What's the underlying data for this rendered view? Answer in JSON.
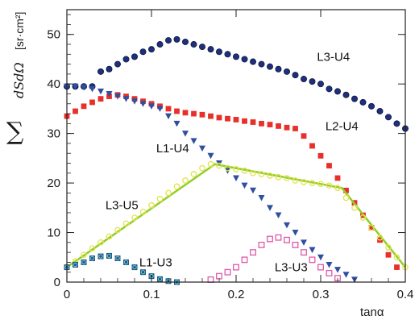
{
  "chart_data": {
    "type": "scatter",
    "xlabel": "tanα",
    "ylabel": {
      "sigma": "∑",
      "expr": "dSdΩ",
      "unit": "[sr·cm²]"
    },
    "xlim": [
      0,
      0.4
    ],
    "ylim": [
      0,
      55
    ],
    "xticks": [
      0,
      0.1,
      0.2,
      0.3,
      0.4
    ],
    "yticks": [
      0,
      10,
      20,
      30,
      40,
      50
    ],
    "xtick_labels": [
      "0",
      "0.1",
      "0.2",
      "0.3",
      "0.4"
    ],
    "ytick_labels": [
      "0",
      "10",
      "20",
      "30",
      "40",
      "50"
    ],
    "grid": false,
    "series": [
      {
        "name": "L3-U4",
        "marker": "circle-filled",
        "color": "#1f2f7a",
        "x": [
          0.0,
          0.01,
          0.02,
          0.03,
          0.04,
          0.05,
          0.06,
          0.07,
          0.08,
          0.09,
          0.1,
          0.11,
          0.12,
          0.13,
          0.14,
          0.15,
          0.16,
          0.17,
          0.18,
          0.19,
          0.2,
          0.21,
          0.22,
          0.23,
          0.24,
          0.25,
          0.26,
          0.27,
          0.28,
          0.29,
          0.3,
          0.31,
          0.32,
          0.33,
          0.34,
          0.35,
          0.36,
          0.37,
          0.38,
          0.39,
          0.4
        ],
        "y": [
          39.5,
          39.5,
          39.5,
          39.5,
          42.5,
          43.0,
          44.0,
          45.0,
          45.5,
          46.5,
          47.0,
          48.0,
          48.8,
          49.0,
          48.5,
          48.0,
          47.5,
          47.0,
          46.5,
          46.0,
          45.5,
          45.0,
          44.5,
          44.0,
          43.5,
          43.0,
          42.5,
          41.8,
          41.0,
          40.5,
          40.0,
          39.0,
          38.5,
          37.8,
          37.0,
          36.3,
          35.5,
          34.5,
          33.3,
          32.0,
          31.0
        ]
      },
      {
        "name": "L2-U4",
        "marker": "square-filled",
        "color": "#e8302a",
        "x": [
          0.0,
          0.01,
          0.02,
          0.03,
          0.04,
          0.05,
          0.06,
          0.07,
          0.08,
          0.09,
          0.1,
          0.11,
          0.12,
          0.13,
          0.14,
          0.15,
          0.16,
          0.17,
          0.18,
          0.19,
          0.2,
          0.21,
          0.22,
          0.23,
          0.24,
          0.25,
          0.26,
          0.27,
          0.28,
          0.29,
          0.3,
          0.31,
          0.32,
          0.33,
          0.34,
          0.35,
          0.36,
          0.37,
          0.38,
          0.39
        ],
        "y": [
          33.5,
          34.5,
          35.5,
          36.3,
          37.0,
          37.5,
          37.8,
          37.5,
          37.0,
          36.5,
          36.0,
          35.5,
          35.0,
          34.5,
          34.2,
          34.0,
          33.8,
          33.5,
          33.2,
          33.0,
          32.8,
          32.5,
          32.3,
          32.0,
          31.8,
          31.5,
          31.2,
          31.0,
          29.5,
          27.5,
          25.5,
          23.5,
          21.0,
          18.5,
          16.0,
          13.5,
          11.0,
          8.5,
          5.5,
          3.0
        ]
      },
      {
        "name": "L1-U4",
        "marker": "triangle-down-filled",
        "color": "#2f4f9f",
        "x": [
          0.0,
          0.01,
          0.02,
          0.03,
          0.04,
          0.05,
          0.06,
          0.07,
          0.08,
          0.09,
          0.1,
          0.11,
          0.12,
          0.13,
          0.14,
          0.15,
          0.16,
          0.17,
          0.18,
          0.19,
          0.2,
          0.21,
          0.22,
          0.23,
          0.24,
          0.25,
          0.26,
          0.27,
          0.28,
          0.29,
          0.3,
          0.31,
          0.32,
          0.33,
          0.34
        ],
        "y": [
          39.5,
          39.5,
          39.3,
          39.0,
          38.5,
          38.0,
          37.5,
          37.0,
          36.5,
          36.0,
          35.5,
          35.0,
          33.5,
          32.0,
          30.0,
          28.5,
          27.0,
          25.5,
          24.0,
          22.5,
          21.0,
          19.5,
          18.5,
          17.0,
          15.0,
          13.5,
          11.5,
          10.0,
          8.0,
          6.5,
          5.0,
          3.5,
          2.5,
          1.5,
          0.5
        ]
      },
      {
        "name": "L3-U5",
        "marker": "circle-open",
        "color": "#e5e24a",
        "fit_color": "#8fcf2a",
        "x": [
          0.0,
          0.01,
          0.02,
          0.03,
          0.04,
          0.05,
          0.06,
          0.07,
          0.08,
          0.09,
          0.1,
          0.11,
          0.12,
          0.13,
          0.14,
          0.15,
          0.16,
          0.17,
          0.18,
          0.19,
          0.2,
          0.21,
          0.22,
          0.23,
          0.24,
          0.25,
          0.26,
          0.27,
          0.28,
          0.29,
          0.3,
          0.31,
          0.32,
          0.33,
          0.34,
          0.35,
          0.36,
          0.37,
          0.38,
          0.39,
          0.4
        ],
        "y": [
          3.0,
          4.2,
          5.5,
          6.8,
          8.0,
          9.2,
          10.5,
          11.8,
          13.0,
          14.2,
          15.5,
          16.8,
          18.0,
          19.3,
          20.5,
          21.8,
          23.0,
          23.8,
          23.5,
          23.0,
          22.8,
          22.5,
          22.0,
          21.8,
          21.5,
          21.2,
          21.0,
          20.5,
          20.2,
          20.0,
          19.8,
          19.5,
          19.0,
          17.0,
          15.0,
          13.0,
          11.0,
          9.0,
          7.0,
          5.0,
          3.0
        ],
        "fit_x": [
          0.0,
          0.175,
          0.325,
          0.4
        ],
        "fit_y": [
          3.0,
          23.8,
          19.0,
          3.0
        ]
      },
      {
        "name": "L1-U3",
        "marker": "square-filled-with-circle",
        "color": "#1b5f85",
        "x": [
          0.0,
          0.01,
          0.02,
          0.03,
          0.04,
          0.05,
          0.06,
          0.07,
          0.08,
          0.09,
          0.1,
          0.11,
          0.12,
          0.13
        ],
        "y": [
          3.0,
          3.5,
          4.0,
          4.8,
          5.2,
          5.3,
          4.8,
          4.0,
          3.0,
          2.0,
          1.2,
          0.6,
          0.2,
          0.0
        ]
      },
      {
        "name": "L3-U3",
        "marker": "square-open",
        "color": "#e05aa8",
        "x": [
          0.17,
          0.18,
          0.19,
          0.2,
          0.21,
          0.22,
          0.23,
          0.24,
          0.25,
          0.26,
          0.27,
          0.28,
          0.29,
          0.3,
          0.31,
          0.32
        ],
        "y": [
          0.5,
          1.2,
          2.0,
          3.0,
          4.5,
          6.0,
          7.5,
          8.7,
          9.0,
          8.5,
          7.5,
          6.0,
          4.5,
          3.0,
          1.8,
          0.8
        ]
      }
    ],
    "annotations": [
      {
        "text": "L3-U4",
        "x": 0.315,
        "y": 45.5
      },
      {
        "text": "L2-U4",
        "x": 0.325,
        "y": 31.5
      },
      {
        "text": "L1-U4",
        "x": 0.125,
        "y": 27.0
      },
      {
        "text": "L3-U5",
        "x": 0.065,
        "y": 15.5
      },
      {
        "text": "L1-U3",
        "x": 0.105,
        "y": 4.0
      },
      {
        "text": "L3-U3",
        "x": 0.265,
        "y": 3.0
      }
    ]
  }
}
